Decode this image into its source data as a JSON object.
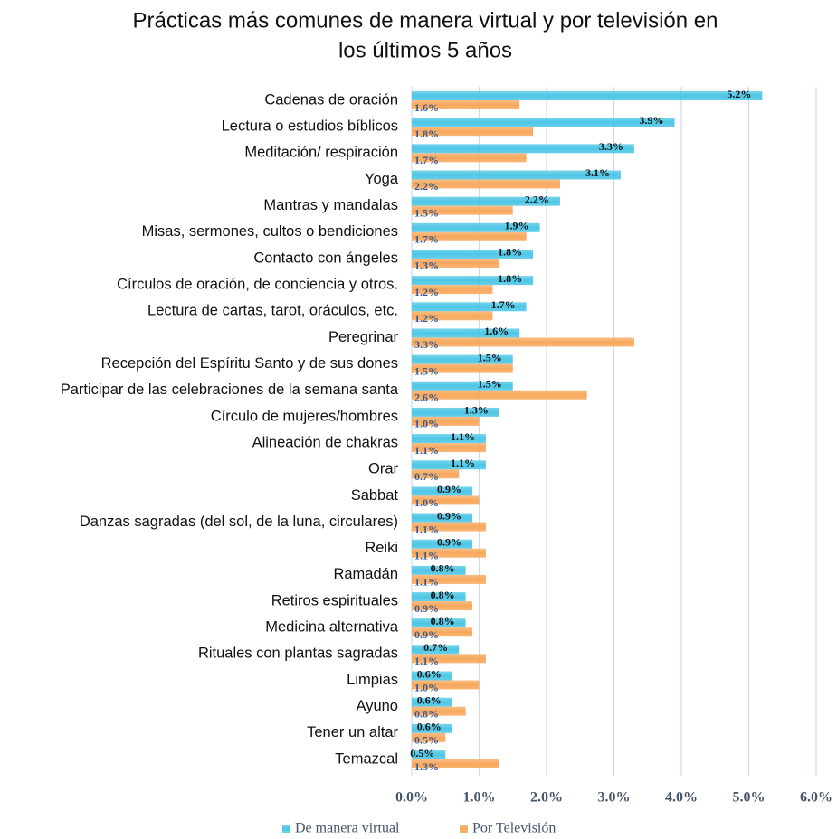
{
  "chart_data": {
    "type": "hbar",
    "title": "Prácticas más comunes de manera virtual y por televisión en los últimos 5 años",
    "categories": [
      "Cadenas de oración",
      "Lectura o estudios bíblicos",
      "Meditación/ respiración",
      "Yoga",
      "Mantras y mandalas",
      "Misas, sermones, cultos o bendiciones",
      "Contacto con ángeles",
      "Círculos de oración, de conciencia y otros.",
      "Lectura de cartas, tarot, oráculos, etc.",
      "Peregrinar",
      "Recepción del Espíritu Santo y de sus dones",
      "Participar de las celebraciones de la semana santa",
      "Círculo de mujeres/hombres",
      "Alineación de chakras",
      "Orar",
      "Sabbat",
      "Danzas sagradas (del sol, de la luna, circulares)",
      "Reiki",
      "Ramadán",
      "Retiros espirituales",
      "Medicina alternativa",
      "Rituales con plantas sagradas",
      "Limpias",
      "Ayuno",
      "Tener un altar",
      "Temazcal"
    ],
    "series": [
      {
        "name": "De manera virtual",
        "color": "#4dc6e6",
        "values": [
          5.2,
          3.9,
          3.3,
          3.1,
          2.2,
          1.9,
          1.8,
          1.8,
          1.7,
          1.6,
          1.5,
          1.5,
          1.3,
          1.1,
          1.1,
          0.9,
          0.9,
          0.9,
          0.8,
          0.8,
          0.8,
          0.7,
          0.6,
          0.6,
          0.6,
          0.5
        ],
        "value_labels": [
          "5.2%",
          "3.9%",
          "3.3%",
          "3.1%",
          "2.2%",
          "1.9%",
          "1.8%",
          "1.8%",
          "1.7%",
          "1.6%",
          "1.5%",
          "1.5%",
          "1.3%",
          "1.1%",
          "1.1%",
          "0.9%",
          "0.9%",
          "0.9%",
          "0.8%",
          "0.8%",
          "0.8%",
          "0.7%",
          "0.6%",
          "0.6%",
          "0.6%",
          "0.5%"
        ]
      },
      {
        "name": "Por Televisión",
        "color": "#f7a85c",
        "values": [
          1.6,
          1.8,
          1.7,
          2.2,
          1.5,
          1.7,
          1.3,
          1.2,
          1.2,
          3.3,
          1.5,
          2.6,
          1.0,
          1.1,
          0.7,
          1.0,
          1.1,
          1.1,
          1.1,
          0.9,
          0.9,
          1.1,
          1.0,
          0.8,
          0.5,
          1.3
        ],
        "value_labels": [
          "1.6%",
          "1.8%",
          "1.7%",
          "2.2%",
          "1.5%",
          "1.7%",
          "1.3%",
          "1.2%",
          "1.2%",
          "3.3%",
          "1.5%",
          "2.6%",
          "1.0%",
          "1.1%",
          "0.7%",
          "1.0%",
          "1.1%",
          "1.1%",
          "1.1%",
          "0.9%",
          "0.9%",
          "1.1%",
          "1.0%",
          "0.8%",
          "0.5%",
          "1.3%"
        ]
      }
    ],
    "xlim": [
      0,
      6
    ],
    "xticks": [
      {
        "value": 0,
        "label": "0.0%"
      },
      {
        "value": 1,
        "label": "1.0%"
      },
      {
        "value": 2,
        "label": "2.0%"
      },
      {
        "value": 3,
        "label": "3.0%"
      },
      {
        "value": 4,
        "label": "4.0%"
      },
      {
        "value": 5,
        "label": "5.0%"
      },
      {
        "value": 6,
        "label": "6.0%"
      }
    ],
    "grid": true
  }
}
